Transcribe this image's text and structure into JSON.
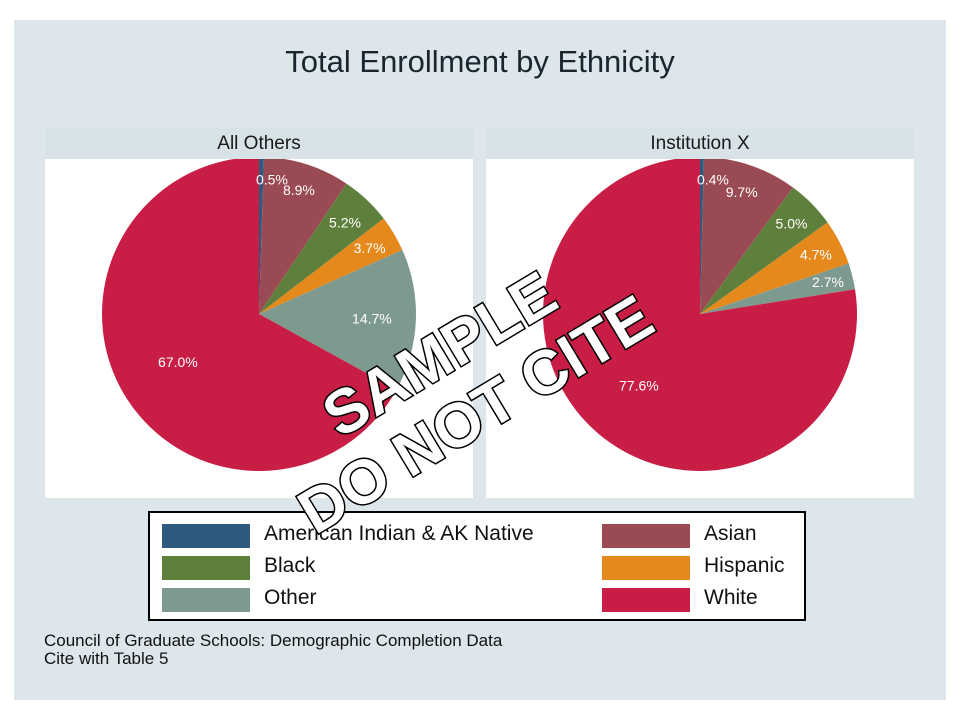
{
  "title": "Total Enrollment by Ethnicity",
  "source": {
    "line1": "Council of Graduate Schools: Demographic Completion Data",
    "line2": "Cite with Table 5"
  },
  "watermark": {
    "line1": "SAMPLE",
    "line2": "DO NOT CITE"
  },
  "colors": {
    "American Indian & AK Native": "#2e5a80",
    "Asian": "#9a4a52",
    "Black": "#5e803c",
    "Hispanic": "#e5891c",
    "Other": "#7e9a8e",
    "White": "#c81e45",
    "background": "#dde6ea",
    "strip": "#d8e3e8"
  },
  "legend": {
    "items": [
      {
        "label": "American Indian & AK Native",
        "color": "#2e5a80"
      },
      {
        "label": "Asian",
        "color": "#9a4a52"
      },
      {
        "label": "Black",
        "color": "#5e803c"
      },
      {
        "label": "Hispanic",
        "color": "#e5891c"
      },
      {
        "label": "Other",
        "color": "#7e9a8e"
      },
      {
        "label": "White",
        "color": "#c81e45"
      }
    ]
  },
  "chart_data": [
    {
      "type": "pie",
      "title": "All Others",
      "categories": [
        "American Indian & AK Native",
        "Asian",
        "Black",
        "Hispanic",
        "Other",
        "White"
      ],
      "values": [
        0.5,
        8.9,
        5.2,
        3.7,
        14.7,
        67.0
      ],
      "labels": [
        "0.5%",
        "8.9%",
        "5.2%",
        "3.7%",
        "14.7%",
        "67.0%"
      ]
    },
    {
      "type": "pie",
      "title": "Institution X",
      "categories": [
        "American Indian & AK Native",
        "Asian",
        "Black",
        "Hispanic",
        "Other",
        "White"
      ],
      "values": [
        0.4,
        9.7,
        5.0,
        4.7,
        2.7,
        77.6
      ],
      "labels": [
        "0.4%",
        "9.7%",
        "5.0%",
        "4.7%",
        "2.7%",
        "77.6%"
      ]
    }
  ]
}
